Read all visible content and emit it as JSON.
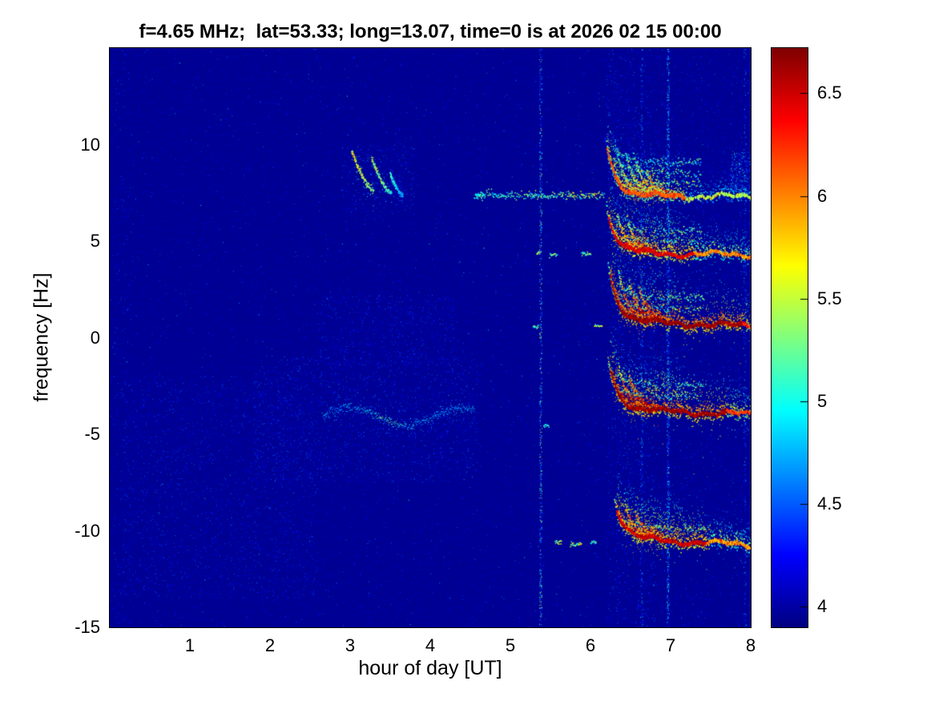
{
  "chart_data": {
    "type": "heatmap",
    "title": "f=4.65 MHz;  lat=53.33; long=13.07, time=0 is at 2026 02 15 00:00",
    "xlabel": "hour of day [UT]",
    "ylabel": "frequency [Hz]",
    "xlim": [
      0,
      8
    ],
    "ylim": [
      -15,
      15
    ],
    "xticks": [
      1,
      2,
      3,
      4,
      5,
      6,
      7,
      8
    ],
    "yticks": [
      10,
      5,
      0,
      -5,
      -10,
      -15
    ],
    "grid": false,
    "colormap": "jet",
    "colorbar": {
      "position": "right",
      "clim": [
        3.9,
        6.72
      ],
      "ticks": [
        4,
        4.5,
        5,
        5.5,
        6,
        6.5
      ]
    },
    "background_level": 3.95,
    "seed": 1337,
    "noise": {
      "count": 55000,
      "mean_excess": 0.11,
      "max": 5.05
    },
    "clouds": [
      {
        "x": [
          0.15,
          2.6
        ],
        "y": [
          -13.5,
          -2
        ],
        "n": 5000,
        "v": [
          3.95,
          4.5
        ]
      },
      {
        "x": [
          1.8,
          4.6
        ],
        "y": [
          -7.5,
          -1
        ],
        "n": 4500,
        "v": [
          3.95,
          4.55
        ]
      },
      {
        "x": [
          2.6,
          4.3
        ],
        "y": [
          -1.5,
          2.2
        ],
        "n": 1800,
        "v": [
          3.95,
          4.5
        ]
      },
      {
        "x": [
          2.9,
          3.8
        ],
        "y": [
          6.5,
          10
        ],
        "n": 700,
        "v": [
          3.95,
          4.6
        ]
      },
      {
        "x": [
          6.2,
          6.8
        ],
        "y": [
          -15,
          15
        ],
        "n": 2600,
        "v": [
          3.95,
          4.6
        ]
      },
      {
        "x": [
          6.2,
          8.0
        ],
        "y": [
          -15,
          15
        ],
        "n": 3500,
        "v": [
          3.95,
          4.45
        ]
      },
      {
        "x": [
          7.75,
          8.0
        ],
        "y": [
          7.4,
          9.6
        ],
        "n": 260,
        "v": [
          4.3,
          5.3
        ]
      },
      {
        "x": [
          0.05,
          0.3
        ],
        "y": [
          -15,
          15
        ],
        "n": 700,
        "v": [
          3.95,
          4.5
        ]
      }
    ],
    "wavy_trace": {
      "t0": 2.65,
      "t1": 4.55,
      "f": -4.1,
      "amp": 0.45,
      "k": 4.5,
      "bright_at": 3.5,
      "v_base": 4.55
    },
    "chirps": [
      {
        "x0": 3.02,
        "y0": 9.7,
        "x1": 3.3,
        "y1": 7.6,
        "v": 5.5
      },
      {
        "x0": 3.27,
        "y0": 9.3,
        "x1": 3.52,
        "y1": 7.5,
        "v": 5.3
      },
      {
        "x0": 3.5,
        "y0": 8.5,
        "x1": 3.66,
        "y1": 7.4,
        "v": 4.9
      }
    ],
    "precursor_line": {
      "f": 7.35,
      "t_start": 4.55,
      "t_end": 6.18,
      "v": [
        4.7,
        5.9
      ]
    },
    "specks": [
      {
        "x": 5.36,
        "y": 4.4,
        "w": 0.06,
        "v": [
          5.0,
          5.8
        ]
      },
      {
        "x": 5.54,
        "y": 4.3,
        "w": 0.1,
        "v": [
          4.8,
          5.6
        ]
      },
      {
        "x": 5.32,
        "y": 0.55,
        "w": 0.07,
        "v": [
          4.8,
          5.5
        ]
      },
      {
        "x": 5.45,
        "y": -4.55,
        "w": 0.07,
        "v": [
          4.7,
          5.3
        ]
      },
      {
        "x": 5.6,
        "y": -10.6,
        "w": 0.08,
        "v": [
          4.9,
          5.7
        ]
      },
      {
        "x": 5.82,
        "y": -10.7,
        "w": 0.14,
        "v": [
          4.9,
          5.8
        ]
      },
      {
        "x": 6.04,
        "y": -10.6,
        "w": 0.07,
        "v": [
          4.8,
          5.5
        ]
      },
      {
        "x": 4.62,
        "y": 7.35,
        "w": 0.1,
        "v": [
          4.8,
          5.4
        ]
      },
      {
        "x": 5.95,
        "y": 4.35,
        "w": 0.12,
        "v": [
          4.8,
          5.6
        ]
      },
      {
        "x": 6.1,
        "y": 0.6,
        "w": 0.1,
        "v": [
          5.0,
          5.9
        ]
      }
    ],
    "vertical_streaks": [
      {
        "x": 5.38,
        "n": 900,
        "v": [
          4.1,
          5.6
        ]
      },
      {
        "x": 6.64,
        "n": 500,
        "v": [
          4.1,
          5.0
        ]
      },
      {
        "x": 6.97,
        "n": 1100,
        "v": [
          4.2,
          5.3
        ]
      },
      {
        "x": 7.93,
        "n": 350,
        "v": [
          4.1,
          4.9
        ]
      }
    ],
    "bands": [
      {
        "f": 7.35,
        "t0": 6.18,
        "tail": 3.2,
        "tails": 5,
        "spread": 2.0,
        "core": 6.15,
        "slope": -0.03,
        "fade": [
          7.2,
          5.45
        ],
        "gap": 0.4,
        "layers": [
          0.6,
          1.15,
          1.7
        ]
      },
      {
        "f": 4.4,
        "t0": 6.2,
        "tail": 2.4,
        "tails": 3,
        "spread": 1.3,
        "core": 6.45,
        "slope": -0.06,
        "fade": [
          7.3,
          5.95
        ],
        "gap": 0.35,
        "layers": [
          0.55,
          1.1
        ]
      },
      {
        "f": 0.85,
        "t0": 6.22,
        "tail": 3.0,
        "tails": 4,
        "spread": 1.7,
        "core": 6.65,
        "slope": -0.14,
        "fade": [
          7.9,
          6.3
        ],
        "gap": 0.1,
        "layers": [
          0.6,
          1.2
        ]
      },
      {
        "f": -3.7,
        "t0": 6.22,
        "tail": 2.6,
        "tails": 3,
        "spread": 1.6,
        "core": 6.65,
        "slope": -0.16,
        "fade": [
          7.7,
          6.2
        ],
        "gap": 0.15,
        "layers": [
          0.6,
          1.2
        ]
      },
      {
        "f": -10.4,
        "t0": 6.3,
        "tail": 2.0,
        "tails": 3,
        "spread": 1.1,
        "core": 6.5,
        "slope": -0.2,
        "fade": [
          7.45,
          5.9
        ],
        "gap": 0.35,
        "layers": [
          0.5
        ]
      }
    ]
  }
}
